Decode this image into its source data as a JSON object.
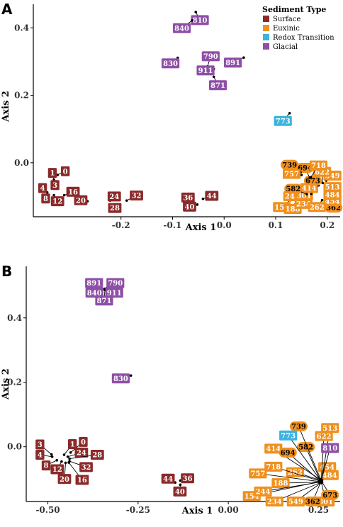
{
  "colors": {
    "Surface": "#8B2A2A",
    "Euxinic": "#F0901E",
    "Redox Transition": "#3BB3E0",
    "Glacial": "#8E4FA6"
  },
  "legend": {
    "title": "Sediment Type",
    "items": [
      "Surface",
      "Euxinic",
      "Redox Transition",
      "Glacial"
    ]
  },
  "chart_data": [
    {
      "panel": "A",
      "type": "scatter",
      "xlabel": "Axis 1",
      "ylabel": "Axis 2",
      "xticks": [
        -0.2,
        -0.1,
        0.0,
        0.1,
        0.2
      ],
      "xtick_labels": [
        "-0.2",
        "-0.1",
        "0.0",
        "0.1",
        "0.2"
      ],
      "yticks": [
        0.0,
        0.2,
        0.4
      ],
      "ytick_labels": [
        "0.0",
        "0.2",
        "0.4"
      ],
      "xlim": [
        -0.37,
        0.225
      ],
      "ylim": [
        -0.16,
        0.47
      ],
      "points": [
        {
          "id": "0",
          "type": "Surface",
          "x": -0.323,
          "y": -0.036,
          "lx": -0.308,
          "ly": -0.025
        },
        {
          "id": "1",
          "type": "Surface",
          "x": -0.33,
          "y": -0.05,
          "lx": -0.333,
          "ly": -0.03
        },
        {
          "id": "3",
          "type": "Surface",
          "x": -0.33,
          "y": -0.073,
          "lx": -0.328,
          "ly": -0.066
        },
        {
          "id": "4",
          "type": "Surface",
          "x": -0.343,
          "y": -0.088,
          "lx": -0.352,
          "ly": -0.075
        },
        {
          "id": "8",
          "type": "Surface",
          "x": -0.341,
          "y": -0.096,
          "lx": -0.346,
          "ly": -0.106
        },
        {
          "id": "12",
          "type": "Surface",
          "x": -0.33,
          "y": -0.096,
          "lx": -0.323,
          "ly": -0.114
        },
        {
          "id": "16",
          "type": "Surface",
          "x": -0.31,
          "y": -0.096,
          "lx": -0.293,
          "ly": -0.086
        },
        {
          "id": "20",
          "type": "Surface",
          "x": -0.265,
          "y": -0.114,
          "lx": -0.278,
          "ly": -0.111
        },
        {
          "id": "24",
          "type": "Surface",
          "x": -0.221,
          "y": -0.112,
          "lx": -0.213,
          "ly": -0.1
        },
        {
          "id": "28",
          "type": "Surface",
          "x": -0.208,
          "y": -0.123,
          "lx": -0.212,
          "ly": -0.134
        },
        {
          "id": "32",
          "type": "Surface",
          "x": -0.189,
          "y": -0.112,
          "lx": -0.17,
          "ly": -0.097
        },
        {
          "id": "36",
          "type": "Surface",
          "x": -0.06,
          "y": -0.116,
          "lx": -0.07,
          "ly": -0.103
        },
        {
          "id": "40",
          "type": "Surface",
          "x": -0.052,
          "y": -0.124,
          "lx": -0.067,
          "ly": -0.13
        },
        {
          "id": "44",
          "type": "Surface",
          "x": -0.041,
          "y": -0.107,
          "lx": -0.024,
          "ly": -0.098
        },
        {
          "id": "154",
          "type": "Euxinic",
          "x": 0.128,
          "y": -0.111,
          "lx": 0.112,
          "ly": -0.131
        },
        {
          "id": "188",
          "type": "Euxinic",
          "x": 0.138,
          "y": -0.124,
          "lx": 0.133,
          "ly": -0.137
        },
        {
          "id": "234",
          "type": "Euxinic",
          "x": 0.143,
          "y": -0.11,
          "lx": 0.154,
          "ly": -0.122
        },
        {
          "id": "244",
          "type": "Euxinic",
          "x": 0.133,
          "y": -0.1,
          "lx": 0.132,
          "ly": -0.099
        },
        {
          "id": "262",
          "type": "Euxinic",
          "x": 0.19,
          "y": -0.111,
          "lx": 0.18,
          "ly": -0.131
        },
        {
          "id": "301",
          "type": "Euxinic",
          "x": 0.162,
          "y": -0.104,
          "lx": 0.155,
          "ly": -0.097
        },
        {
          "id": "362",
          "type": "Euxinic",
          "x": 0.205,
          "y": -0.122,
          "lx": 0.212,
          "ly": -0.133
        },
        {
          "id": "414",
          "type": "Euxinic",
          "x": 0.169,
          "y": -0.092,
          "lx": 0.165,
          "ly": -0.075
        },
        {
          "id": "454",
          "type": "Euxinic",
          "x": 0.205,
          "y": -0.1,
          "lx": 0.21,
          "ly": -0.114
        },
        {
          "id": "484",
          "type": "Euxinic",
          "x": 0.205,
          "y": -0.092,
          "lx": 0.21,
          "ly": -0.095
        },
        {
          "id": "513",
          "type": "Euxinic",
          "x": 0.2,
          "y": -0.073,
          "lx": 0.21,
          "ly": -0.072
        },
        {
          "id": "549",
          "type": "Euxinic",
          "x": 0.198,
          "y": -0.053,
          "lx": 0.21,
          "ly": -0.038
        },
        {
          "id": "582",
          "type": "Euxinic",
          "x": 0.16,
          "y": -0.093,
          "lx": 0.134,
          "ly": -0.077
        },
        {
          "id": "622",
          "type": "Euxinic",
          "x": 0.191,
          "y": -0.06,
          "lx": 0.19,
          "ly": -0.027
        },
        {
          "id": "673",
          "type": "Euxinic",
          "x": 0.183,
          "y": -0.067,
          "lx": 0.172,
          "ly": -0.053
        },
        {
          "id": "694",
          "type": "Euxinic",
          "x": 0.166,
          "y": -0.045,
          "lx": 0.157,
          "ly": -0.015
        },
        {
          "id": "718",
          "type": "Euxinic",
          "x": 0.168,
          "y": -0.043,
          "lx": 0.183,
          "ly": -0.008
        },
        {
          "id": "739",
          "type": "Euxinic",
          "x": 0.148,
          "y": -0.028,
          "lx": 0.127,
          "ly": -0.006
        },
        {
          "id": "757",
          "type": "Euxinic",
          "x": 0.15,
          "y": -0.036,
          "lx": 0.131,
          "ly": -0.033
        },
        {
          "id": "773",
          "type": "Redox Transition",
          "x": 0.127,
          "y": 0.147,
          "lx": 0.114,
          "ly": 0.124
        },
        {
          "id": "790",
          "type": "Glacial",
          "x": -0.032,
          "y": 0.286,
          "lx": -0.026,
          "ly": 0.316
        },
        {
          "id": "810",
          "type": "Glacial",
          "x": -0.055,
          "y": 0.447,
          "lx": -0.047,
          "ly": 0.423
        },
        {
          "id": "830",
          "type": "Glacial",
          "x": -0.09,
          "y": 0.311,
          "lx": -0.104,
          "ly": 0.295
        },
        {
          "id": "840",
          "type": "Glacial",
          "x": -0.062,
          "y": 0.422,
          "lx": -0.082,
          "ly": 0.399
        },
        {
          "id": "871",
          "type": "Glacial",
          "x": -0.02,
          "y": 0.255,
          "lx": -0.012,
          "ly": 0.23
        },
        {
          "id": "891",
          "type": "Glacial",
          "x": 0.038,
          "y": 0.312,
          "lx": 0.017,
          "ly": 0.297
        },
        {
          "id": "911",
          "type": "Glacial",
          "x": -0.02,
          "y": 0.278,
          "lx": -0.036,
          "ly": 0.274
        }
      ]
    },
    {
      "panel": "B",
      "type": "scatter",
      "xlabel": "Axis 1",
      "ylabel": "Axis 2",
      "xticks": [
        -0.5,
        -0.25,
        0.0,
        0.25
      ],
      "xtick_labels": [
        "-0.50",
        "-0.25",
        "0.00",
        "0.25"
      ],
      "yticks": [
        0.0,
        0.2,
        0.4
      ],
      "ytick_labels": [
        "0.0",
        "0.2",
        "0.4"
      ],
      "xlim": [
        -0.56,
        0.31
      ],
      "ylim": [
        -0.17,
        0.56
      ],
      "points": [
        {
          "id": "0",
          "type": "Surface",
          "x": -0.437,
          "y": -0.018,
          "lx": -0.402,
          "ly": 0.015
        },
        {
          "id": "1",
          "type": "Surface",
          "x": -0.455,
          "y": -0.025,
          "lx": -0.432,
          "ly": 0.008
        },
        {
          "id": "3",
          "type": "Surface",
          "x": -0.49,
          "y": -0.024,
          "lx": -0.522,
          "ly": 0.007
        },
        {
          "id": "4",
          "type": "Surface",
          "x": -0.488,
          "y": -0.031,
          "lx": -0.522,
          "ly": -0.025
        },
        {
          "id": "8",
          "type": "Surface",
          "x": -0.475,
          "y": -0.042,
          "lx": -0.505,
          "ly": -0.058
        },
        {
          "id": "12",
          "type": "Surface",
          "x": -0.462,
          "y": -0.046,
          "lx": -0.474,
          "ly": -0.07
        },
        {
          "id": "16",
          "type": "Surface",
          "x": -0.442,
          "y": -0.049,
          "lx": -0.405,
          "ly": -0.103
        },
        {
          "id": "20",
          "type": "Surface",
          "x": -0.451,
          "y": -0.05,
          "lx": -0.454,
          "ly": -0.1
        },
        {
          "id": "24",
          "type": "Surface",
          "x": -0.445,
          "y": -0.031,
          "lx": -0.407,
          "ly": -0.018
        },
        {
          "id": "28",
          "type": "Surface",
          "x": -0.44,
          "y": -0.037,
          "lx": -0.363,
          "ly": -0.025
        },
        {
          "id": "32",
          "type": "Surface",
          "x": -0.44,
          "y": -0.045,
          "lx": -0.394,
          "ly": -0.063
        },
        {
          "id": "36",
          "type": "Surface",
          "x": -0.133,
          "y": -0.105,
          "lx": -0.113,
          "ly": -0.098
        },
        {
          "id": "40",
          "type": "Surface",
          "x": -0.133,
          "y": -0.118,
          "lx": -0.134,
          "ly": -0.139
        },
        {
          "id": "44",
          "type": "Surface",
          "x": -0.147,
          "y": -0.111,
          "lx": -0.167,
          "ly": -0.099
        },
        {
          "id": "154",
          "type": "Euxinic",
          "x": 0.255,
          "y": -0.108,
          "lx": 0.065,
          "ly": -0.153
        },
        {
          "id": "188",
          "type": "Euxinic",
          "x": 0.252,
          "y": -0.11,
          "lx": 0.145,
          "ly": -0.113
        },
        {
          "id": "234",
          "type": "Euxinic",
          "x": 0.254,
          "y": -0.112,
          "lx": 0.128,
          "ly": -0.17
        },
        {
          "id": "244",
          "type": "Euxinic",
          "x": 0.253,
          "y": -0.11,
          "lx": 0.096,
          "ly": -0.139
        },
        {
          "id": "262",
          "type": "Euxinic",
          "x": 0.255,
          "y": -0.104,
          "lx": 0.185,
          "ly": -0.079
        },
        {
          "id": "301",
          "type": "Euxinic",
          "x": 0.258,
          "y": -0.112,
          "lx": 0.27,
          "ly": -0.17
        },
        {
          "id": "362",
          "type": "Euxinic",
          "x": 0.256,
          "y": -0.11,
          "lx": 0.234,
          "ly": -0.17
        },
        {
          "id": "414",
          "type": "Euxinic",
          "x": 0.255,
          "y": -0.102,
          "lx": 0.125,
          "ly": -0.006
        },
        {
          "id": "454",
          "type": "Euxinic",
          "x": 0.258,
          "y": -0.106,
          "lx": 0.274,
          "ly": -0.063
        },
        {
          "id": "484",
          "type": "Euxinic",
          "x": 0.259,
          "y": -0.107,
          "lx": 0.281,
          "ly": -0.088
        },
        {
          "id": "513",
          "type": "Euxinic",
          "x": 0.259,
          "y": -0.103,
          "lx": 0.282,
          "ly": 0.058
        },
        {
          "id": "549",
          "type": "Euxinic",
          "x": 0.257,
          "y": -0.112,
          "lx": 0.187,
          "ly": -0.17
        },
        {
          "id": "582",
          "type": "Euxinic",
          "x": 0.255,
          "y": -0.105,
          "lx": 0.215,
          "ly": -0.001
        },
        {
          "id": "622",
          "type": "Euxinic",
          "x": 0.258,
          "y": -0.104,
          "lx": 0.265,
          "ly": 0.033
        },
        {
          "id": "673",
          "type": "Euxinic",
          "x": 0.26,
          "y": -0.11,
          "lx": 0.282,
          "ly": -0.15
        },
        {
          "id": "694",
          "type": "Euxinic",
          "x": 0.254,
          "y": -0.106,
          "lx": 0.165,
          "ly": -0.018
        },
        {
          "id": "718",
          "type": "Euxinic",
          "x": 0.253,
          "y": -0.106,
          "lx": 0.125,
          "ly": -0.062
        },
        {
          "id": "739",
          "type": "Euxinic",
          "x": 0.256,
          "y": -0.101,
          "lx": 0.195,
          "ly": 0.063
        },
        {
          "id": "757",
          "type": "Euxinic",
          "x": 0.252,
          "y": -0.108,
          "lx": 0.082,
          "ly": -0.083
        },
        {
          "id": "773",
          "type": "Redox Transition",
          "x": 0.254,
          "y": -0.102,
          "lx": 0.166,
          "ly": 0.035
        },
        {
          "id": "790",
          "type": "Glacial",
          "x": -0.337,
          "y": 0.492,
          "lx": -0.313,
          "ly": 0.508
        },
        {
          "id": "810",
          "type": "Glacial",
          "x": 0.258,
          "y": -0.103,
          "lx": 0.282,
          "ly": -0.004
        },
        {
          "id": "830",
          "type": "Glacial",
          "x": -0.27,
          "y": 0.221,
          "lx": -0.298,
          "ly": 0.212
        },
        {
          "id": "840",
          "type": "Glacial",
          "x": -0.355,
          "y": 0.498,
          "lx": -0.371,
          "ly": 0.478
        },
        {
          "id": "871",
          "type": "Glacial",
          "x": -0.342,
          "y": 0.487,
          "lx": -0.344,
          "ly": 0.454
        },
        {
          "id": "891",
          "type": "Glacial",
          "x": -0.352,
          "y": 0.497,
          "lx": -0.372,
          "ly": 0.508
        },
        {
          "id": "911",
          "type": "Glacial",
          "x": -0.343,
          "y": 0.49,
          "lx": -0.316,
          "ly": 0.478
        }
      ]
    }
  ]
}
